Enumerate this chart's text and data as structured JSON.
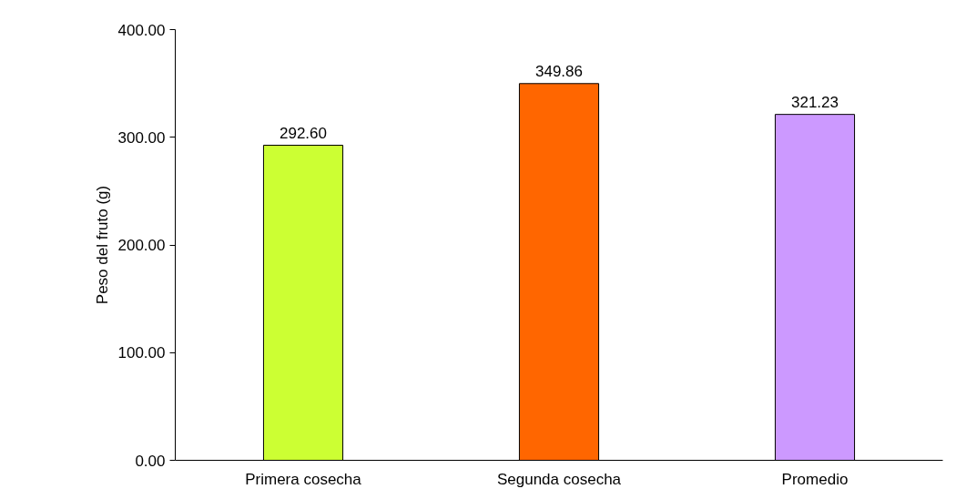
{
  "chart_data": {
    "type": "bar",
    "ylabel": "Peso del fruto (g)",
    "categories": [
      "Primera cosecha",
      "Segunda cosecha",
      "Promedio"
    ],
    "values": [
      292.6,
      349.86,
      321.23
    ],
    "colors": [
      "#ccff33",
      "#ff6600",
      "#cc99ff"
    ],
    "value_labels": [
      "292.60",
      "349.86",
      "321.23"
    ],
    "ylim": [
      0,
      400
    ],
    "yticks": [
      {
        "value": 0,
        "label": "0.00"
      },
      {
        "value": 100,
        "label": "100.00"
      },
      {
        "value": 200,
        "label": "200.00"
      },
      {
        "value": 300,
        "label": "300.00"
      },
      {
        "value": 400,
        "label": "400.00"
      }
    ],
    "grid": false
  }
}
